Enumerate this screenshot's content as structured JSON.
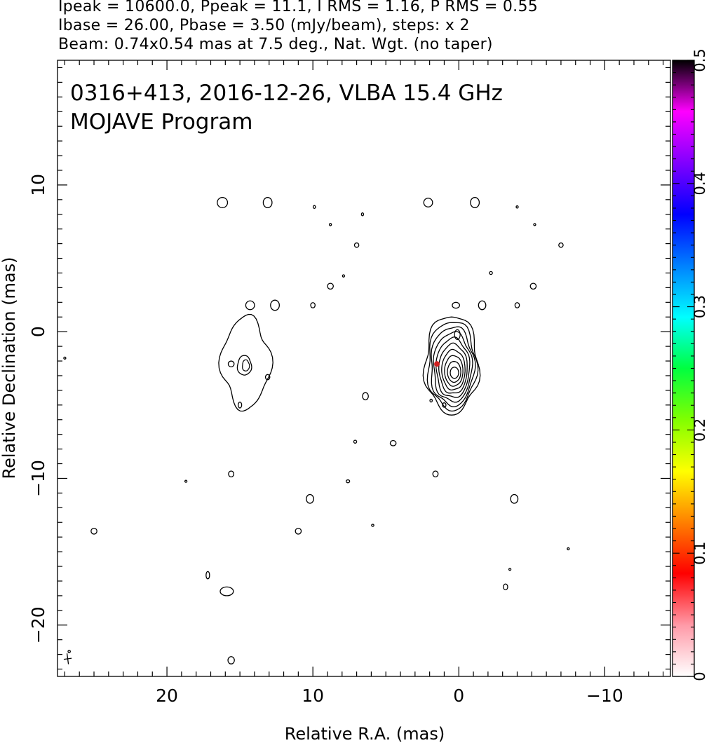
{
  "header": {
    "line1": "Ipeak = 10600.0, Ppeak = 11.1, I RMS = 1.16, P RMS = 0.55",
    "line2": "Ibase = 26.00, Pbase = 3.50 (mJy/beam), steps: x 2",
    "line3": "Beam: 0.74x0.54 mas at 7.5 deg., Nat. Wgt. (no taper)"
  },
  "chart_data": {
    "type": "contour",
    "title": "0316+413, 2016-12-26, VLBA 15.4 GHz",
    "subtitle": "MOJAVE Program",
    "xlabel": "Relative R.A. (mas)",
    "ylabel": "Relative Declination (mas)",
    "xlim": [
      27.5,
      -14.5
    ],
    "ylim": [
      -23.5,
      18.5
    ],
    "x_ticks": [
      20,
      10,
      0,
      -10
    ],
    "x_tick_labels": [
      "20",
      "10",
      "0",
      "−10"
    ],
    "y_ticks": [
      10,
      0,
      -10,
      -20
    ],
    "y_tick_labels": [
      "10",
      "0",
      "−10",
      "−20"
    ],
    "colorbar": {
      "range": [
        0,
        0.5
      ],
      "ticks": [
        0,
        0.1,
        0.2,
        0.3,
        0.4,
        0.5
      ],
      "tick_labels": [
        "0",
        "0.1",
        "0.2",
        "0.3",
        "0.4",
        "0.5"
      ],
      "colormap": [
        "#ffffff",
        "#ff9aa8",
        "#ff0000",
        "#ff8000",
        "#ffff00",
        "#80ff00",
        "#00ff40",
        "#00ffff",
        "#0080ff",
        "#0000ff",
        "#8000ff",
        "#ff00ff",
        "#000000"
      ]
    },
    "core": {
      "x": 0.3,
      "y": -2.8,
      "contour_levels": 10
    },
    "counterjet": {
      "x": 14.5,
      "y": -2.5
    },
    "polarization_peak": {
      "x": 1.5,
      "y": -2.2,
      "color": "#d02020"
    },
    "beam": {
      "major": 0.74,
      "minor": 0.54,
      "pa_deg": 7.5,
      "x": 26.8,
      "y": -22.3
    },
    "noise_islands": [
      [
        16.2,
        8.8,
        0.35,
        0.35
      ],
      [
        13.1,
        8.8,
        0.3,
        0.35
      ],
      [
        9.9,
        8.5,
        0.08,
        0.1
      ],
      [
        8.8,
        7.3,
        0.06,
        0.08
      ],
      [
        6.6,
        8.0,
        0.06,
        0.1
      ],
      [
        2.1,
        8.8,
        0.3,
        0.3
      ],
      [
        -1.1,
        8.8,
        0.3,
        0.35
      ],
      [
        -4.0,
        8.5,
        0.06,
        0.08
      ],
      [
        -5.2,
        7.3,
        0.06,
        0.07
      ],
      [
        7.0,
        5.9,
        0.15,
        0.15
      ],
      [
        -7.0,
        5.9,
        0.15,
        0.15
      ],
      [
        7.9,
        3.8,
        0.07,
        0.08
      ],
      [
        -2.2,
        4.0,
        0.1,
        0.1
      ],
      [
        8.8,
        3.1,
        0.2,
        0.2
      ],
      [
        -5.1,
        3.1,
        0.2,
        0.2
      ],
      [
        14.3,
        1.8,
        0.3,
        0.3
      ],
      [
        12.6,
        1.8,
        0.3,
        0.35
      ],
      [
        10.0,
        1.8,
        0.15,
        0.18
      ],
      [
        0.2,
        1.8,
        0.25,
        0.2
      ],
      [
        -1.6,
        1.8,
        0.25,
        0.3
      ],
      [
        -4.0,
        1.8,
        0.15,
        0.18
      ],
      [
        27.0,
        -1.8,
        0.05,
        0.05
      ],
      [
        15.6,
        -2.2,
        0.2,
        0.2
      ],
      [
        13.1,
        -3.1,
        0.15,
        0.18
      ],
      [
        15.0,
        -5.0,
        0.12,
        0.2
      ],
      [
        1.9,
        -4.7,
        0.08,
        0.1
      ],
      [
        1.0,
        -5.0,
        0.12,
        0.15
      ],
      [
        6.4,
        -4.4,
        0.2,
        0.25
      ],
      [
        7.1,
        -7.5,
        0.1,
        0.1
      ],
      [
        4.5,
        -7.6,
        0.2,
        0.18
      ],
      [
        15.6,
        -9.7,
        0.18,
        0.2
      ],
      [
        1.6,
        -9.7,
        0.18,
        0.2
      ],
      [
        18.7,
        -10.2,
        0.05,
        0.06
      ],
      [
        7.6,
        -10.2,
        0.12,
        0.1
      ],
      [
        10.2,
        -11.4,
        0.25,
        0.3
      ],
      [
        -3.8,
        -11.4,
        0.25,
        0.3
      ],
      [
        25.0,
        -13.6,
        0.2,
        0.2
      ],
      [
        11.0,
        -13.6,
        0.2,
        0.2
      ],
      [
        5.9,
        -13.2,
        0.08,
        0.06
      ],
      [
        -7.5,
        -14.8,
        0.04,
        0.05
      ],
      [
        17.2,
        -16.6,
        0.12,
        0.25
      ],
      [
        -3.5,
        -16.2,
        0.04,
        0.05
      ],
      [
        -3.2,
        -17.4,
        0.15,
        0.2
      ],
      [
        15.9,
        -17.7,
        0.45,
        0.3
      ],
      [
        26.7,
        -21.8,
        0.08,
        0.08
      ],
      [
        15.6,
        -22.4,
        0.22,
        0.25
      ]
    ]
  }
}
